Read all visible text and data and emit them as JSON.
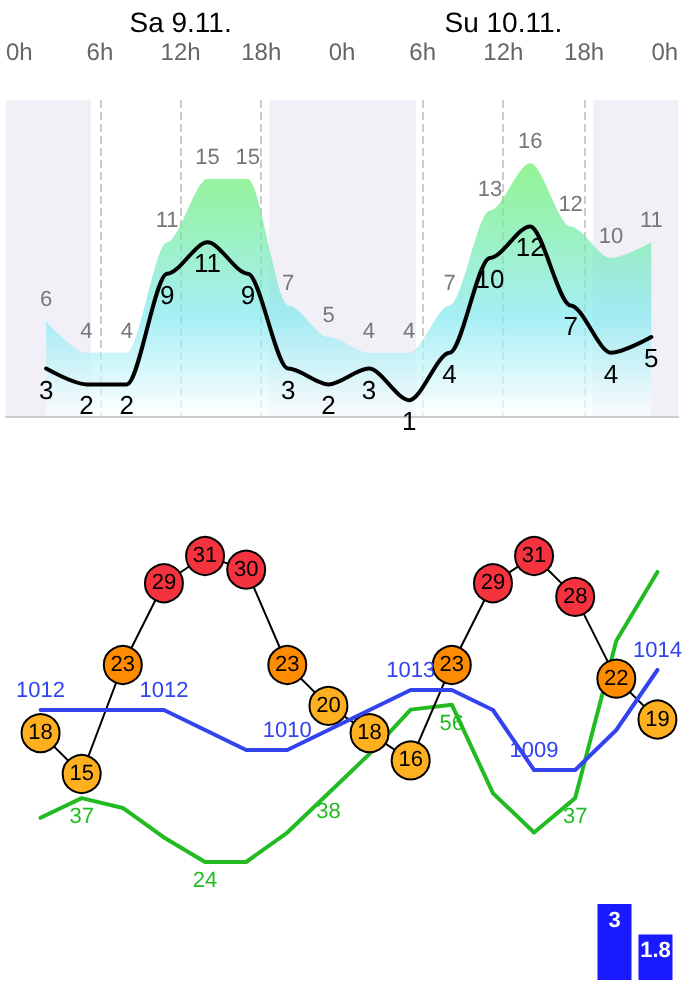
{
  "chart_data": [
    {
      "type": "line",
      "x": [
        "--11-09T02:00",
        "--11-09T05:00",
        "--11-09T08:00",
        "--11-09T11:00",
        "--11-09T14:00",
        "--11-09T17:00",
        "--11-09T20:00",
        "--11-09T23:00",
        "--11-10T02:00",
        "--11-10T05:00",
        "--11-10T08:00",
        "--11-10T11:00",
        "--11-10T14:00",
        "--11-10T17:00",
        "--11-10T20:00",
        "--11-10T23:00"
      ],
      "xlim": [
        "--11-08T23:00",
        "--11-11T01:00"
      ],
      "xticks": [
        {
          "value": "--11-09T00:00",
          "label": "0h"
        },
        {
          "value": "--11-09T06:00",
          "label": "6h"
        },
        {
          "value": "--11-09T12:00",
          "label": "12h"
        },
        {
          "value": "--11-09T18:00",
          "label": "18h"
        },
        {
          "value": "--11-10T00:00",
          "label": "0h"
        },
        {
          "value": "--11-10T06:00",
          "label": "6h"
        },
        {
          "value": "--11-10T12:00",
          "label": "12h"
        },
        {
          "value": "--11-10T18:00",
          "label": "18h"
        },
        {
          "value": "--11-11T00:00",
          "label": "0h"
        }
      ],
      "x2lim": [
        "--11-08T23:00",
        "--11-11T01:00"
      ],
      "x2ticks": [
        {
          "value": "--11-09T12:00",
          "label": "Sa 9.11."
        },
        {
          "value": "--11-10T12:00",
          "label": "Su 10.11."
        }
      ],
      "ylim": [
        0,
        20
      ],
      "tick_labels": "x",
      "grid": "x",
      "data_labels": true,
      "bands": [
        {
          "axis": "x",
          "from": "--11-08T23:00",
          "to": "--11-09T05:20",
          "color": "#f1f0f7"
        },
        {
          "axis": "x",
          "from": "--11-09T18:35",
          "to": "--11-10T05:30",
          "color": "#f1f0f7"
        },
        {
          "axis": "x",
          "from": "--11-10T18:40",
          "to": "--11-11T01:00",
          "color": "#f1f0f7"
        }
      ],
      "series": [
        {
          "type": "area",
          "color": "#66ee66",
          "values": [
            6,
            4,
            4,
            11,
            15,
            15,
            7,
            5,
            4,
            4,
            7,
            13,
            16,
            12,
            10,
            11
          ]
        },
        {
          "type": "line",
          "color": "#000000",
          "values": [
            3,
            2,
            2,
            9,
            11,
            9,
            3,
            2,
            3,
            1,
            4,
            10,
            12,
            7,
            4,
            5
          ]
        }
      ]
    },
    {
      "type": "line",
      "categories": [
        null,
        null,
        null,
        null,
        null,
        null,
        null,
        null,
        null,
        null,
        null,
        null,
        null,
        null,
        null,
        null
      ],
      "tick_labels": false,
      "series": [
        {
          "color": "#22bb22",
          "values": [
            33,
            37,
            35,
            29,
            24,
            24,
            30,
            38,
            46,
            55,
            56,
            38,
            30,
            37,
            69,
            83
          ],
          "value_labels": [
            null,
            "37",
            null,
            null,
            "24",
            null,
            null,
            "38",
            null,
            null,
            "56",
            null,
            null,
            "37",
            null,
            null
          ]
        }
      ]
    },
    {
      "type": "bar",
      "categories": [
        null,
        null
      ],
      "tick_labels": false,
      "data_labels": true,
      "series": [
        {
          "color": "#1a1aff",
          "values": [
            3,
            1.8
          ]
        }
      ]
    },
    {
      "type": "line",
      "categories": [
        null,
        null,
        null,
        null,
        null,
        null,
        null,
        null,
        null,
        null,
        null,
        null,
        null,
        null,
        null,
        null
      ],
      "tick_labels": false,
      "data_labels": true,
      "marker": "circle",
      "series": [
        {
          "color": "#000000",
          "values": [
            18,
            15,
            23,
            29,
            31,
            30,
            23,
            20,
            18,
            16,
            23,
            29,
            31,
            28,
            22,
            19
          ],
          "colors": [
            "#ffb020",
            "#ffb020",
            "#ff8c00",
            "#f5333f",
            "#f5333f",
            "#f5333f",
            "#ff8c00",
            "#ffb020",
            "#ffb020",
            "#ffb020",
            "#ff8c00",
            "#f5333f",
            "#f5333f",
            "#f5333f",
            "#ff8c00",
            "#ffb020"
          ]
        }
      ]
    },
    {
      "type": "line",
      "categories": [
        null,
        null,
        null,
        null,
        null,
        null,
        null,
        null,
        null,
        null,
        null,
        null,
        null,
        null,
        null,
        null
      ],
      "tick_labels": false,
      "series": [
        {
          "color": "#3344ee",
          "values": [
            1012,
            1012,
            1012,
            1012,
            1011,
            1010,
            1010,
            1011,
            1012,
            1013,
            1013,
            1012,
            1009,
            1009,
            1011,
            1014
          ],
          "value_labels": [
            "1012",
            null,
            null,
            "1012",
            null,
            null,
            "1010",
            null,
            null,
            "1013",
            null,
            null,
            "1009",
            null,
            null,
            "1014"
          ]
        }
      ]
    }
  ]
}
